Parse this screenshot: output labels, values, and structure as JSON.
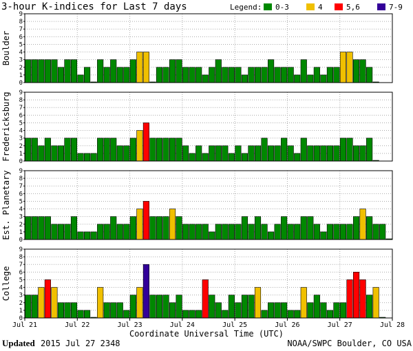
{
  "title": "3-hour K-indices for Last 7 days",
  "legend": {
    "label": "Legend:",
    "items": [
      {
        "label": "0-3",
        "color": "#008800"
      },
      {
        "label": "4",
        "color": "#f0c000"
      },
      {
        "label": "5,6",
        "color": "#ff0000"
      },
      {
        "label": "7-9",
        "color": "#330099"
      }
    ]
  },
  "footer": {
    "updated_label": "Updated",
    "updated_value": "2015 Jul 27 2348",
    "source": "NOAA/SWPC Boulder, CO USA"
  },
  "chart_data": {
    "type": "bar",
    "xlabel": "Coordinate Universal Time (UTC)",
    "x_ticks": [
      "Jul 21",
      "Jul 22",
      "Jul 23",
      "Jul 24",
      "Jul 25",
      "Jul 26",
      "Jul 27",
      "Jul 28"
    ],
    "ylim": [
      0,
      9
    ],
    "y_ticks": [
      "0",
      "1",
      "2",
      "3",
      "4",
      "5",
      "6",
      "7",
      "8",
      "9"
    ],
    "panels": [
      {
        "name": "Boulder",
        "values": [
          3,
          3,
          3,
          3,
          3,
          2,
          3,
          3,
          1,
          2,
          0,
          3,
          2,
          3,
          2,
          2,
          3,
          4,
          4,
          0,
          2,
          2,
          3,
          3,
          2,
          2,
          2,
          1,
          2,
          3,
          2,
          2,
          2,
          1,
          2,
          2,
          2,
          3,
          2,
          2,
          2,
          1,
          3,
          1,
          2,
          1,
          2,
          2,
          4,
          4,
          3,
          3,
          2,
          0
        ]
      },
      {
        "name": "Fredericksburg",
        "values": [
          3,
          3,
          2,
          3,
          2,
          2,
          3,
          3,
          1,
          1,
          1,
          3,
          3,
          3,
          2,
          2,
          3,
          4,
          5,
          3,
          3,
          3,
          3,
          3,
          2,
          1,
          2,
          1,
          2,
          2,
          2,
          1,
          2,
          1,
          2,
          2,
          3,
          2,
          2,
          3,
          2,
          1,
          3,
          2,
          2,
          2,
          2,
          2,
          3,
          3,
          2,
          2,
          3,
          0
        ]
      },
      {
        "name": "Est. Planetary",
        "values": [
          3,
          3,
          3,
          3,
          2,
          2,
          2,
          3,
          1,
          1,
          1,
          2,
          2,
          3,
          2,
          2,
          3,
          4,
          5,
          3,
          3,
          3,
          4,
          3,
          2,
          2,
          2,
          2,
          1,
          2,
          2,
          2,
          2,
          3,
          2,
          3,
          2,
          1,
          2,
          3,
          2,
          2,
          3,
          3,
          2,
          1,
          2,
          2,
          2,
          2,
          3,
          4,
          3,
          2,
          2,
          0
        ]
      },
      {
        "name": "College",
        "values": [
          3,
          3,
          4,
          5,
          4,
          2,
          2,
          2,
          1,
          1,
          0,
          4,
          2,
          2,
          2,
          1,
          3,
          4,
          7,
          3,
          3,
          3,
          2,
          3,
          1,
          1,
          1,
          5,
          3,
          2,
          1,
          3,
          2,
          3,
          3,
          4,
          1,
          2,
          2,
          2,
          1,
          1,
          4,
          2,
          3,
          2,
          1,
          2,
          2,
          5,
          6,
          5,
          3,
          4,
          0
        ]
      }
    ]
  }
}
